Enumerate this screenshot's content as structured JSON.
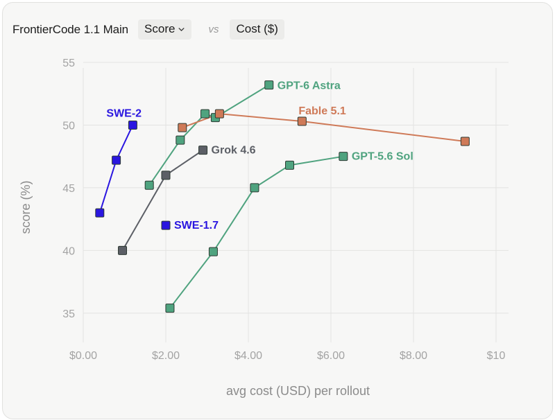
{
  "header": {
    "benchmark": "FrontierCode 1.1 Main",
    "y_metric": "Score",
    "vs": "vs",
    "x_metric": "Cost ($)",
    "y_dropdown_icon": "chevron-down-icon"
  },
  "chart_data": {
    "type": "scatter",
    "title": "",
    "xlabel": "avg cost (USD) per rollout",
    "ylabel": "score (%)",
    "xlim": [
      0,
      10
    ],
    "ylim": [
      33,
      55
    ],
    "xticks": [
      0,
      2,
      4,
      6,
      8,
      10
    ],
    "xtick_labels": [
      "$0.00",
      "$2.00",
      "$4.00",
      "$6.00",
      "$8.00",
      "$10"
    ],
    "yticks": [
      35,
      40,
      45,
      50,
      55
    ],
    "ytick_labels": [
      "35",
      "40",
      "45",
      "50",
      "55"
    ],
    "grid": true,
    "legend": "inline labels",
    "series": [
      {
        "name": "GPT-6 Astra",
        "color": "#4fa37f",
        "line": true,
        "points": [
          [
            1.6,
            45.2
          ],
          [
            2.35,
            48.8
          ],
          [
            2.95,
            50.9
          ],
          [
            3.2,
            50.6
          ],
          [
            4.5,
            53.2
          ]
        ]
      },
      {
        "name": "Fable 5.1",
        "color": "#cf7a58",
        "line": true,
        "points": [
          [
            2.4,
            49.8
          ],
          [
            3.3,
            50.9
          ],
          [
            5.3,
            50.3
          ],
          [
            9.25,
            48.7
          ]
        ]
      },
      {
        "name": "SWE-2",
        "color": "#2a16e0",
        "line": true,
        "points": [
          [
            0.4,
            43.0
          ],
          [
            0.8,
            47.2
          ],
          [
            1.2,
            50.0
          ]
        ]
      },
      {
        "name": "Grok 4.6",
        "color": "#5c5f66",
        "line": true,
        "points": [
          [
            0.95,
            40.0
          ],
          [
            2.0,
            46.0
          ],
          [
            2.9,
            48.0
          ]
        ]
      },
      {
        "name": "GPT-5.6 Sol",
        "color": "#4fa37f",
        "line": true,
        "points": [
          [
            2.1,
            35.4
          ],
          [
            3.15,
            39.9
          ],
          [
            4.15,
            45.0
          ],
          [
            5.0,
            46.8
          ],
          [
            6.3,
            47.5
          ]
        ]
      },
      {
        "name": "SWE-1.7",
        "color": "#2a16e0",
        "line": false,
        "points": [
          [
            2.0,
            42.0
          ]
        ]
      }
    ]
  }
}
